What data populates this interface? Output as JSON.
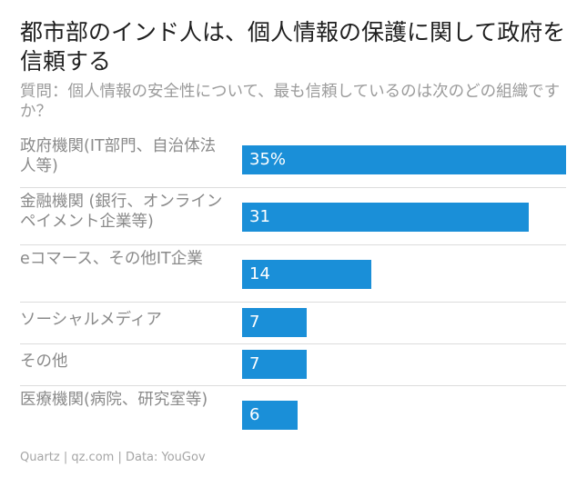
{
  "header": {
    "title": "都市部のインド人は、個人情報の保護に関して政府を信頼する",
    "subtitle": "質問：個人情報の安全性について、最も信頼しているのは次のどの組織ですか？"
  },
  "chart_data": {
    "type": "bar",
    "orientation": "horizontal",
    "title": "都市部のインド人は、個人情報の保護に関して政府を信頼する",
    "subtitle": "質問：個人情報の安全性について、最も信頼しているのは次のどの組織ですか？",
    "categories": [
      "政府機関(IT部門、自治体法人等)",
      "金融機関 (銀行、オンラインペイメント企業等)",
      "eコマース、その他IT企業",
      "ソーシャルメディア",
      "その他",
      "医療機関(病院、研究室等)"
    ],
    "values": [
      35,
      31,
      14,
      7,
      7,
      6
    ],
    "value_labels": [
      "35%",
      "31",
      "14",
      "7",
      "7",
      "6"
    ],
    "xlim": [
      0,
      35
    ],
    "color": "#1a8fd8",
    "grid": false
  },
  "footer": {
    "source": "Quartz | qz.com | Data: YouGov"
  }
}
